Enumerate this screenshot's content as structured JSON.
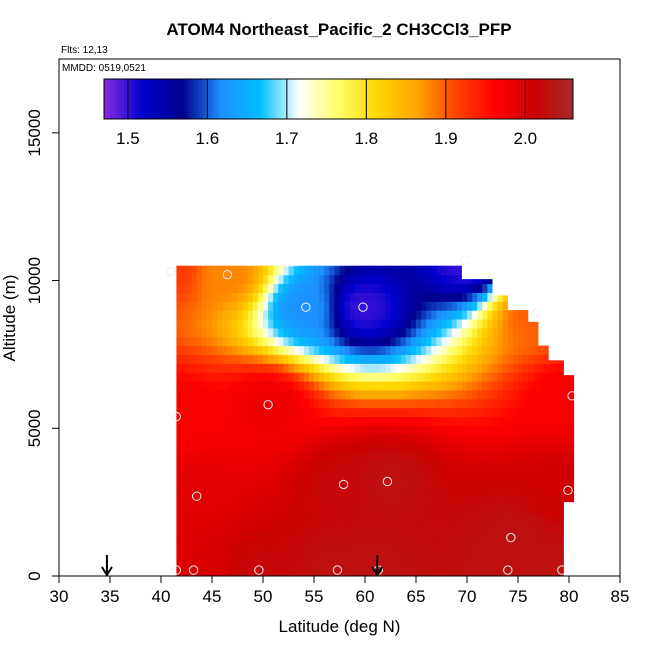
{
  "chart_data": {
    "type": "heatmap",
    "title": "ATOM4 Northeast_Pacific_2 CH3CCl3_PFP",
    "flights_note": "Flts: 12,13",
    "date_note": "MMDD: 0519,0521",
    "xlabel": "Latitude (deg N)",
    "ylabel": "Altitude (m)",
    "xlim": [
      30,
      85
    ],
    "ylim": [
      0,
      17500
    ],
    "x_ticks": [
      30,
      35,
      40,
      45,
      50,
      55,
      60,
      65,
      70,
      75,
      80,
      85
    ],
    "y_ticks": [
      0,
      5000,
      10000,
      15000
    ],
    "colorbar": {
      "range": [
        1.47,
        2.06
      ],
      "ticks": [
        1.5,
        1.6,
        1.7,
        1.8,
        1.9,
        2.0
      ],
      "tick_labels": [
        "1.5",
        "1.6",
        "1.7",
        "1.8",
        "1.9",
        "2.0"
      ],
      "colors": [
        "#8a2be2",
        "#0000cd",
        "#00008b",
        "#1e90ff",
        "#00bfff",
        "#ffffff",
        "#ffff66",
        "#ffd700",
        "#ffa500",
        "#ff4500",
        "#ff0000",
        "#cd0000",
        "#a52a2a"
      ]
    },
    "field_extent": {
      "lat_min": 41.5,
      "upper_boundary": [
        {
          "lat": 41.5,
          "alt": 10500
        },
        {
          "lat": 69.5,
          "alt": 10500
        },
        {
          "lat": 69.5,
          "alt": 10050
        },
        {
          "lat": 72.5,
          "alt": 10050
        },
        {
          "lat": 72.5,
          "alt": 9500
        },
        {
          "lat": 74,
          "alt": 9500
        },
        {
          "lat": 74,
          "alt": 9000
        },
        {
          "lat": 76,
          "alt": 9000
        },
        {
          "lat": 76,
          "alt": 8600
        },
        {
          "lat": 77,
          "alt": 8600
        },
        {
          "lat": 77,
          "alt": 7800
        },
        {
          "lat": 78,
          "alt": 7800
        },
        {
          "lat": 78,
          "alt": 7300
        },
        {
          "lat": 79.5,
          "alt": 7300
        },
        {
          "lat": 79.5,
          "alt": 6800
        },
        {
          "lat": 80.5,
          "alt": 6800
        },
        {
          "lat": 80.5,
          "alt": 6000
        },
        {
          "lat": 80.5,
          "alt": 2500
        },
        {
          "lat": 79.5,
          "alt": 2500
        },
        {
          "lat": 79.5,
          "alt": 0
        }
      ]
    },
    "samples": [
      {
        "lat": 41,
        "alt": 10300,
        "value": 1.92
      },
      {
        "lat": 46.5,
        "alt": 10200,
        "value": 1.88
      },
      {
        "lat": 54.2,
        "alt": 9100,
        "value": 1.62
      },
      {
        "lat": 59.8,
        "alt": 9100,
        "value": 1.5
      },
      {
        "lat": 69.8,
        "alt": 10700,
        "value": 1.5
      },
      {
        "lat": 76.8,
        "alt": 8900,
        "value": 1.9
      },
      {
        "lat": 80.3,
        "alt": 6100,
        "value": 1.97
      },
      {
        "lat": 41.5,
        "alt": 5400,
        "value": 1.97
      },
      {
        "lat": 50.5,
        "alt": 5800,
        "value": 1.98
      },
      {
        "lat": 43.5,
        "alt": 2700,
        "value": 1.99
      },
      {
        "lat": 57.9,
        "alt": 3100,
        "value": 2.02
      },
      {
        "lat": 62.2,
        "alt": 3200,
        "value": 2.03
      },
      {
        "lat": 79.9,
        "alt": 2900,
        "value": 2.01
      },
      {
        "lat": 74.3,
        "alt": 1300,
        "value": 2.03
      },
      {
        "lat": 41.5,
        "alt": 200,
        "value": 1.99
      },
      {
        "lat": 43.2,
        "alt": 200,
        "value": 2.0
      },
      {
        "lat": 49.6,
        "alt": 200,
        "value": 2.02
      },
      {
        "lat": 57.3,
        "alt": 200,
        "value": 2.03
      },
      {
        "lat": 61.3,
        "alt": 200,
        "value": 2.03
      },
      {
        "lat": 74,
        "alt": 200,
        "value": 2.03
      },
      {
        "lat": 79.3,
        "alt": 200,
        "value": 2.03
      }
    ],
    "arrows": [
      {
        "lat": 34.7,
        "alt": 0
      },
      {
        "lat": 61.2,
        "alt": 0
      }
    ],
    "grid": false,
    "legend": "colorbar-inset-top"
  }
}
